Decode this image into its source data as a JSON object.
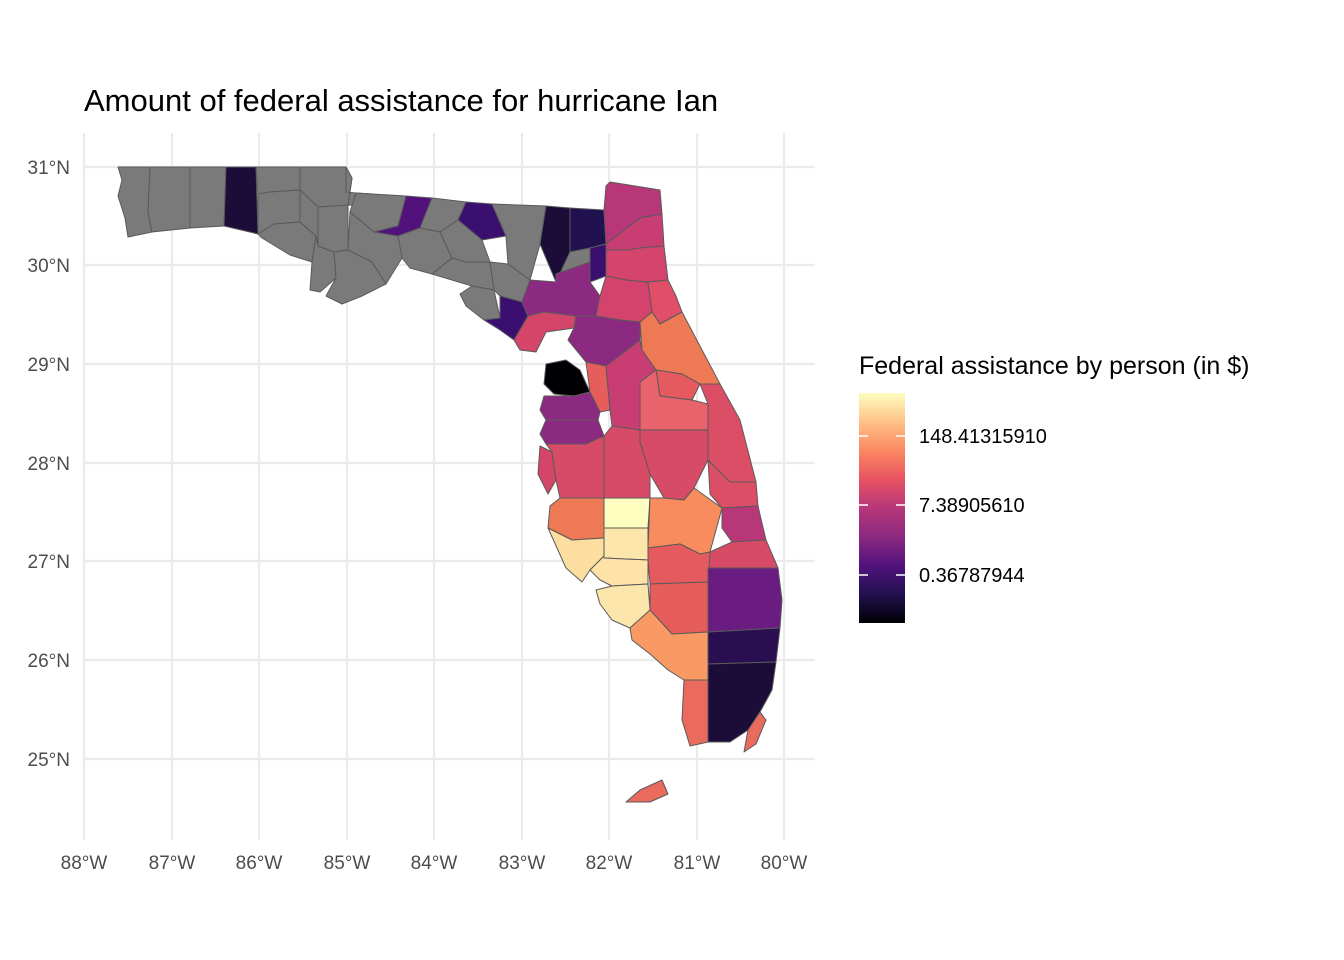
{
  "title": "Amount of federal assistance for hurricane Ian",
  "map": {
    "lon_range": [
      -88.0,
      -80.0
    ],
    "lat_range": [
      24.5,
      31.0
    ],
    "x_ticks": [
      "88°W",
      "87°W",
      "86°W",
      "85°W",
      "84°W",
      "83°W",
      "82°W",
      "81°W",
      "80°W"
    ],
    "y_ticks": [
      "25°N",
      "26°N",
      "27°N",
      "28°N",
      "29°N",
      "30°N",
      "31°N"
    ],
    "grid": true,
    "missing_color": "#7a7a7a",
    "region": "Florida counties"
  },
  "legend": {
    "title": "Federal assistance by person (in $)",
    "position": "right",
    "scale": "log",
    "palette": "magma",
    "labels": [
      "148.41315910",
      "7.38905610",
      "0.36787944"
    ],
    "colors": [
      "#fcfdbf",
      "#fec287",
      "#fb8861",
      "#e85362",
      "#b73779",
      "#8c2981",
      "#51127c",
      "#221150",
      "#000004"
    ]
  }
}
